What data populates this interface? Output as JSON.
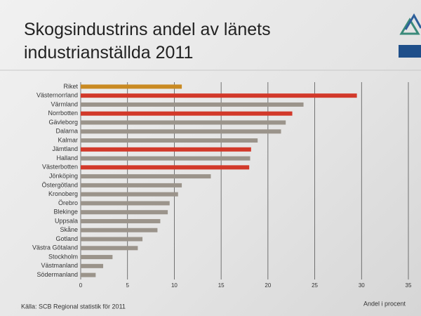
{
  "chart_data": {
    "type": "bar",
    "orientation": "horizontal",
    "title": "Skogsindustrins andel av länets industrianställda 2011",
    "x_label": "Andel i procent",
    "source": "Källa: SCB Regional statistik för 2011",
    "categories": [
      "Riket",
      "Västernorrland",
      "Värmland",
      "Norrbotten",
      "Gävleborg",
      "Dalarna",
      "Kalmar",
      "Jämtland",
      "Halland",
      "Västerbotten",
      "Jönköping",
      "Östergötland",
      "Kronoberg",
      "Örebro",
      "Blekinge",
      "Uppsala",
      "Skåne",
      "Gotland",
      "Västra Götaland",
      "Stockholm",
      "Västmanland",
      "Södermanland"
    ],
    "values": [
      10.8,
      29.5,
      23.8,
      22.6,
      21.9,
      21.4,
      18.9,
      18.2,
      18.1,
      18.0,
      13.9,
      10.8,
      10.4,
      9.5,
      9.3,
      8.5,
      8.2,
      6.6,
      6.1,
      3.4,
      2.4,
      1.6
    ],
    "colors": [
      "#c98a22",
      "#d2392a",
      "#9b948b",
      "#d2392a",
      "#9b948b",
      "#9b948b",
      "#9b948b",
      "#d2392a",
      "#9b948b",
      "#d2392a",
      "#9b948b",
      "#9b948b",
      "#9b948b",
      "#9b948b",
      "#9b948b",
      "#9b948b",
      "#9b948b",
      "#9b948b",
      "#9b948b",
      "#9b948b",
      "#9b948b",
      "#9b948b"
    ],
    "xlim": [
      0,
      35
    ],
    "xticks": [
      0,
      5,
      10,
      15,
      20,
      25,
      30,
      35
    ],
    "grid": true
  }
}
